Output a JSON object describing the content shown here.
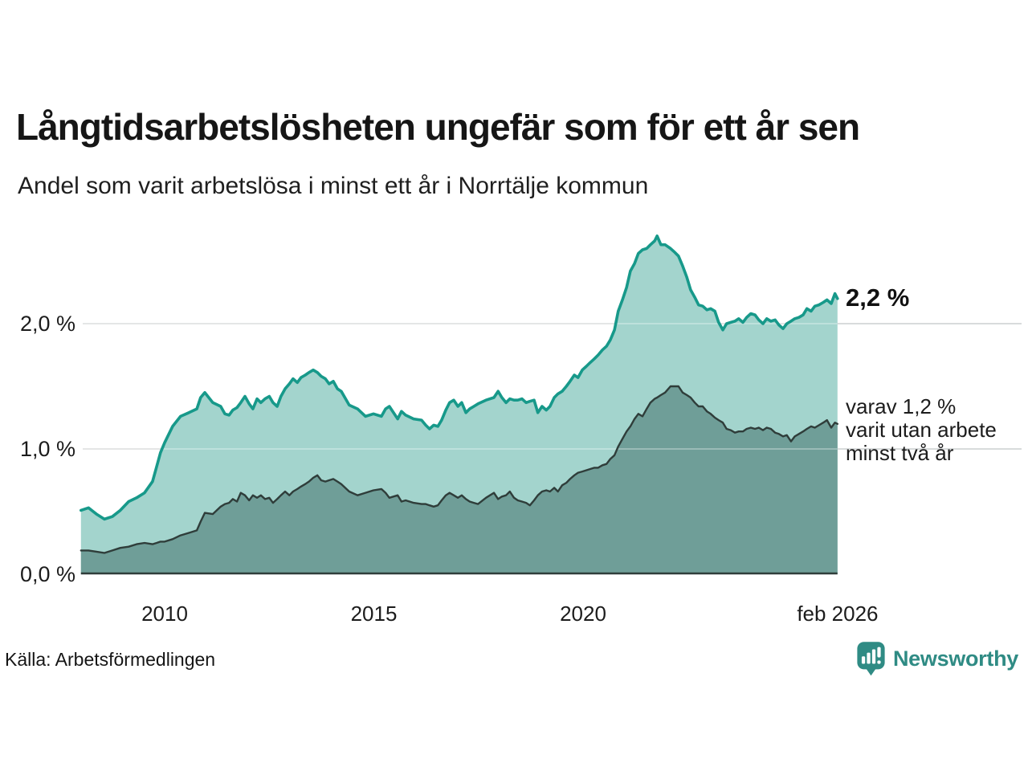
{
  "header": {
    "title": "Långtidsarbetslösheten ungefär som för ett år sen",
    "subtitle": "Andel som varit arbetslösa i minst ett år i Norrtälje kommun"
  },
  "chart_data": {
    "type": "area",
    "title": "Långtidsarbetslösheten ungefär som för ett år sen",
    "subtitle": "Andel som varit arbetslösa i minst ett år i Norrtälje kommun",
    "unit": "%",
    "xlim": [
      2008.0,
      2026.083
    ],
    "ylim": [
      0,
      2.8
    ],
    "grid": "horizontal",
    "x_years": [
      2008.0,
      2008.18,
      2008.37,
      2008.56,
      2008.75,
      2008.94,
      2009.14,
      2009.33,
      2009.52,
      2009.71,
      2009.81,
      2009.9,
      2010.0,
      2010.19,
      2010.38,
      2010.58,
      2010.77,
      2010.86,
      2010.96,
      2011.15,
      2011.34,
      2011.44,
      2011.54,
      2011.63,
      2011.73,
      2011.82,
      2011.92,
      2012.02,
      2012.11,
      2012.21,
      2012.3,
      2012.4,
      2012.5,
      2012.59,
      2012.69,
      2012.78,
      2012.88,
      2012.98,
      2013.07,
      2013.17,
      2013.26,
      2013.36,
      2013.45,
      2013.55,
      2013.65,
      2013.74,
      2013.84,
      2013.93,
      2014.03,
      2014.13,
      2014.22,
      2014.41,
      2014.61,
      2014.8,
      2014.99,
      2015.18,
      2015.28,
      2015.37,
      2015.57,
      2015.66,
      2015.76,
      2015.95,
      2016.14,
      2016.24,
      2016.33,
      2016.43,
      2016.53,
      2016.62,
      2016.72,
      2016.81,
      2016.91,
      2017.01,
      2017.1,
      2017.2,
      2017.29,
      2017.39,
      2017.49,
      2017.68,
      2017.87,
      2017.97,
      2018.06,
      2018.16,
      2018.25,
      2018.35,
      2018.44,
      2018.54,
      2018.64,
      2018.73,
      2018.83,
      2018.92,
      2019.02,
      2019.12,
      2019.21,
      2019.31,
      2019.4,
      2019.5,
      2019.6,
      2019.69,
      2019.79,
      2019.88,
      2019.98,
      2020.08,
      2020.17,
      2020.27,
      2020.36,
      2020.46,
      2020.56,
      2020.65,
      2020.75,
      2020.84,
      2020.94,
      2021.04,
      2021.13,
      2021.23,
      2021.32,
      2021.42,
      2021.52,
      2021.61,
      2021.71,
      2021.77,
      2021.86,
      2021.96,
      2022.09,
      2022.19,
      2022.28,
      2022.38,
      2022.48,
      2022.57,
      2022.67,
      2022.76,
      2022.86,
      2022.96,
      2023.05,
      2023.15,
      2023.24,
      2023.34,
      2023.43,
      2023.53,
      2023.63,
      2023.72,
      2023.82,
      2023.91,
      2024.01,
      2024.11,
      2024.2,
      2024.3,
      2024.39,
      2024.49,
      2024.59,
      2024.68,
      2024.78,
      2024.87,
      2024.97,
      2025.06,
      2025.16,
      2025.26,
      2025.35,
      2025.45,
      2025.54,
      2025.64,
      2025.74,
      2025.83,
      2025.93,
      2026.02,
      2026.08
    ],
    "series": [
      {
        "name": "Andel arbetslösa minst ett år",
        "color_fill": "#a3d4cd",
        "color_line": "#17998a",
        "end_value": 2.2,
        "values": [
          0.51,
          0.53,
          0.48,
          0.44,
          0.46,
          0.51,
          0.58,
          0.61,
          0.65,
          0.74,
          0.86,
          0.97,
          1.05,
          1.18,
          1.26,
          1.29,
          1.32,
          1.41,
          1.45,
          1.37,
          1.34,
          1.28,
          1.27,
          1.31,
          1.33,
          1.37,
          1.42,
          1.36,
          1.32,
          1.4,
          1.37,
          1.4,
          1.42,
          1.37,
          1.34,
          1.42,
          1.48,
          1.52,
          1.56,
          1.53,
          1.57,
          1.59,
          1.61,
          1.63,
          1.61,
          1.58,
          1.56,
          1.52,
          1.54,
          1.48,
          1.46,
          1.35,
          1.32,
          1.26,
          1.28,
          1.26,
          1.32,
          1.34,
          1.24,
          1.3,
          1.27,
          1.24,
          1.23,
          1.19,
          1.16,
          1.19,
          1.18,
          1.23,
          1.31,
          1.37,
          1.39,
          1.34,
          1.37,
          1.29,
          1.32,
          1.34,
          1.36,
          1.39,
          1.41,
          1.46,
          1.41,
          1.37,
          1.4,
          1.39,
          1.39,
          1.4,
          1.37,
          1.38,
          1.39,
          1.29,
          1.34,
          1.31,
          1.34,
          1.41,
          1.44,
          1.46,
          1.5,
          1.54,
          1.59,
          1.57,
          1.63,
          1.66,
          1.69,
          1.72,
          1.75,
          1.79,
          1.82,
          1.87,
          1.95,
          2.1,
          2.19,
          2.29,
          2.42,
          2.48,
          2.56,
          2.59,
          2.6,
          2.63,
          2.66,
          2.7,
          2.63,
          2.63,
          2.6,
          2.57,
          2.54,
          2.46,
          2.37,
          2.27,
          2.21,
          2.15,
          2.14,
          2.11,
          2.12,
          2.1,
          2.01,
          1.95,
          2.0,
          2.01,
          2.02,
          2.04,
          2.01,
          2.05,
          2.08,
          2.07,
          2.03,
          2.0,
          2.04,
          2.02,
          2.03,
          1.99,
          1.96,
          2.0,
          2.02,
          2.04,
          2.05,
          2.07,
          2.12,
          2.1,
          2.14,
          2.15,
          2.17,
          2.19,
          2.16,
          2.24,
          2.2
        ]
      },
      {
        "name": "varav utan arbete minst två år",
        "color_fill": "#6f9e98",
        "color_line": "#2f3d3a",
        "end_value": 1.2,
        "values": [
          0.19,
          0.19,
          0.18,
          0.17,
          0.19,
          0.21,
          0.22,
          0.24,
          0.25,
          0.24,
          0.25,
          0.26,
          0.26,
          0.28,
          0.31,
          0.33,
          0.35,
          0.42,
          0.49,
          0.48,
          0.54,
          0.56,
          0.57,
          0.6,
          0.58,
          0.65,
          0.63,
          0.59,
          0.63,
          0.61,
          0.63,
          0.6,
          0.61,
          0.57,
          0.6,
          0.63,
          0.66,
          0.63,
          0.66,
          0.68,
          0.7,
          0.72,
          0.74,
          0.77,
          0.79,
          0.75,
          0.74,
          0.75,
          0.76,
          0.74,
          0.72,
          0.66,
          0.63,
          0.65,
          0.67,
          0.68,
          0.65,
          0.61,
          0.63,
          0.58,
          0.59,
          0.57,
          0.56,
          0.56,
          0.55,
          0.54,
          0.55,
          0.59,
          0.63,
          0.65,
          0.63,
          0.61,
          0.63,
          0.6,
          0.58,
          0.57,
          0.56,
          0.61,
          0.65,
          0.6,
          0.62,
          0.63,
          0.66,
          0.61,
          0.59,
          0.58,
          0.57,
          0.55,
          0.59,
          0.63,
          0.66,
          0.67,
          0.66,
          0.69,
          0.66,
          0.71,
          0.73,
          0.76,
          0.79,
          0.81,
          0.82,
          0.83,
          0.84,
          0.85,
          0.85,
          0.87,
          0.88,
          0.92,
          0.95,
          1.02,
          1.08,
          1.14,
          1.18,
          1.24,
          1.28,
          1.26,
          1.32,
          1.37,
          1.4,
          1.41,
          1.43,
          1.45,
          1.5,
          1.5,
          1.5,
          1.45,
          1.43,
          1.41,
          1.37,
          1.34,
          1.34,
          1.3,
          1.28,
          1.25,
          1.23,
          1.21,
          1.16,
          1.15,
          1.13,
          1.14,
          1.14,
          1.16,
          1.17,
          1.16,
          1.17,
          1.15,
          1.17,
          1.16,
          1.13,
          1.12,
          1.1,
          1.11,
          1.06,
          1.1,
          1.12,
          1.14,
          1.16,
          1.18,
          1.17,
          1.19,
          1.21,
          1.23,
          1.17,
          1.21,
          1.2
        ]
      }
    ],
    "yticks": [
      {
        "value": 0,
        "label": "0,0 %"
      },
      {
        "value": 1,
        "label": "1,0 %"
      },
      {
        "value": 2,
        "label": "2,0 %"
      }
    ],
    "xticks": [
      {
        "year": 2010,
        "label": "2010"
      },
      {
        "year": 2015,
        "label": "2015"
      },
      {
        "year": 2020,
        "label": "2020"
      },
      {
        "year": 2026.083,
        "label": "feb 2026"
      }
    ],
    "annotations": {
      "end_value": "2,2 %",
      "secondary_lines": [
        "varav 1,2 %",
        "varit utan arbete",
        "minst två år"
      ]
    },
    "grid_color": "#d8dbdc",
    "baseline_color": "#2f3d3a"
  },
  "footer": {
    "source": "Källa: Arbetsförmedlingen",
    "brand": "Newsworthy",
    "brand_icon": "newsworthy-chart-bubble-icon",
    "brand_color": "#2f8b84"
  }
}
